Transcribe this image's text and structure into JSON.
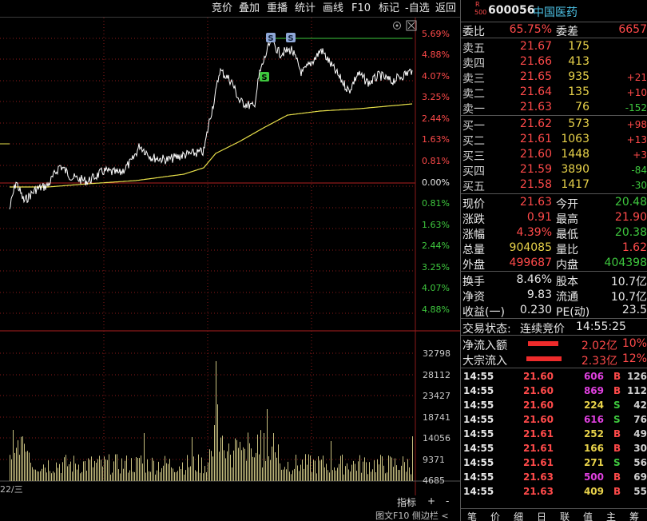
{
  "toolbar": {
    "items": [
      "竞价",
      "叠加",
      "重播",
      "统计",
      "画线",
      "F10",
      "标记",
      "-自选",
      "返回"
    ]
  },
  "stock": {
    "badge_top": "R",
    "badge_bottom": "500",
    "code": "600056",
    "name": "中国医药"
  },
  "pct_labels_up": [
    "5.69%",
    "4.88%",
    "4.07%",
    "3.25%",
    "2.44%",
    "1.63%",
    "0.81%"
  ],
  "pct_zero": "0.00%",
  "pct_labels_down": [
    "0.81%",
    "1.63%",
    "2.44%",
    "3.25%",
    "4.07%",
    "4.88%"
  ],
  "vol_labels": [
    "32798",
    "28112",
    "23427",
    "18741",
    "14056",
    "9371",
    "4685"
  ],
  "date_label": "22/三",
  "bottom": {
    "indicator": "指标",
    "plus": "+",
    "minus": "-"
  },
  "footer": "图文F10 侧边栏 <",
  "markers": [
    "S",
    "S",
    "S"
  ],
  "order_book": {
    "ratio_label": "委比",
    "ratio_value": "65.75%",
    "diff_label": "委差",
    "diff_value": "6657",
    "asks": [
      {
        "label": "卖五",
        "price": "21.67",
        "vol": "175",
        "chg": ""
      },
      {
        "label": "卖四",
        "price": "21.66",
        "vol": "413",
        "chg": ""
      },
      {
        "label": "卖三",
        "price": "21.65",
        "vol": "935",
        "chg": "+21"
      },
      {
        "label": "卖二",
        "price": "21.64",
        "vol": "135",
        "chg": "+10"
      },
      {
        "label": "卖一",
        "price": "21.63",
        "vol": "76",
        "chg": "-152"
      }
    ],
    "bids": [
      {
        "label": "买一",
        "price": "21.62",
        "vol": "573",
        "chg": "+98"
      },
      {
        "label": "买二",
        "price": "21.61",
        "vol": "1063",
        "chg": "+13"
      },
      {
        "label": "买三",
        "price": "21.60",
        "vol": "1448",
        "chg": "+3"
      },
      {
        "label": "买四",
        "price": "21.59",
        "vol": "3890",
        "chg": "-84"
      },
      {
        "label": "买五",
        "price": "21.58",
        "vol": "1417",
        "chg": "-30"
      }
    ]
  },
  "quote": {
    "rows": [
      {
        "l1": "现价",
        "v1": "21.63",
        "c1": "red",
        "l2": "今开",
        "v2": "20.48",
        "c2": "green"
      },
      {
        "l1": "涨跌",
        "v1": "0.91",
        "c1": "red",
        "l2": "最高",
        "v2": "21.90",
        "c2": "red"
      },
      {
        "l1": "涨幅",
        "v1": "4.39%",
        "c1": "red",
        "l2": "最低",
        "v2": "20.38",
        "c2": "green"
      },
      {
        "l1": "总量",
        "v1": "904085",
        "c1": "yellow",
        "l2": "量比",
        "v2": "1.62",
        "c2": "red"
      },
      {
        "l1": "外盘",
        "v1": "499687",
        "c1": "red",
        "l2": "内盘",
        "v2": "404398",
        "c2": "green"
      }
    ],
    "rows2": [
      {
        "l1": "换手",
        "v1": "8.46%",
        "l2": "股本",
        "v2": "10.7亿"
      },
      {
        "l1": "净资",
        "v1": "9.83",
        "l2": "流通",
        "v2": "10.7亿"
      },
      {
        "l1": "收益(一)",
        "v1": "0.230",
        "l2": "PE(动)",
        "v2": "23.5"
      }
    ],
    "status_label": "交易状态:",
    "status_value": "连续竞价",
    "status_time": "14:55:25"
  },
  "flows": [
    {
      "label": "净流入额",
      "value": "2.02亿",
      "pct": "10%"
    },
    {
      "label": "大宗流入",
      "value": "2.33亿",
      "pct": "12%"
    }
  ],
  "ticks": [
    {
      "time": "14:55",
      "price": "21.60",
      "vol": "606",
      "side": "B",
      "n": "126",
      "vc": "mag"
    },
    {
      "time": "14:55",
      "price": "21.60",
      "vol": "869",
      "side": "B",
      "n": "112",
      "vc": "mag"
    },
    {
      "time": "14:55",
      "price": "21.60",
      "vol": "224",
      "side": "S",
      "n": "42",
      "vc": "yellow"
    },
    {
      "time": "14:55",
      "price": "21.60",
      "vol": "616",
      "side": "S",
      "n": "76",
      "vc": "mag"
    },
    {
      "time": "14:55",
      "price": "21.61",
      "vol": "252",
      "side": "B",
      "n": "49",
      "vc": "yellow"
    },
    {
      "time": "14:55",
      "price": "21.61",
      "vol": "166",
      "side": "B",
      "n": "30",
      "vc": "yellow"
    },
    {
      "time": "14:55",
      "price": "21.61",
      "vol": "271",
      "side": "S",
      "n": "56",
      "vc": "yellow"
    },
    {
      "time": "14:55",
      "price": "21.63",
      "vol": "500",
      "side": "B",
      "n": "69",
      "vc": "mag"
    },
    {
      "time": "14:55",
      "price": "21.63",
      "vol": "409",
      "side": "B",
      "n": "55",
      "vc": "yellow"
    }
  ],
  "tabs": [
    "笔",
    "价",
    "细",
    "日",
    "联",
    "值",
    "主",
    "筹"
  ],
  "colors": {
    "up": "#ff4a4a",
    "down": "#3ec83e",
    "price_line": "#ffffff",
    "avg_line": "#e8e04a",
    "volume": "#c8c080",
    "grid": "#8b1a1a"
  }
}
